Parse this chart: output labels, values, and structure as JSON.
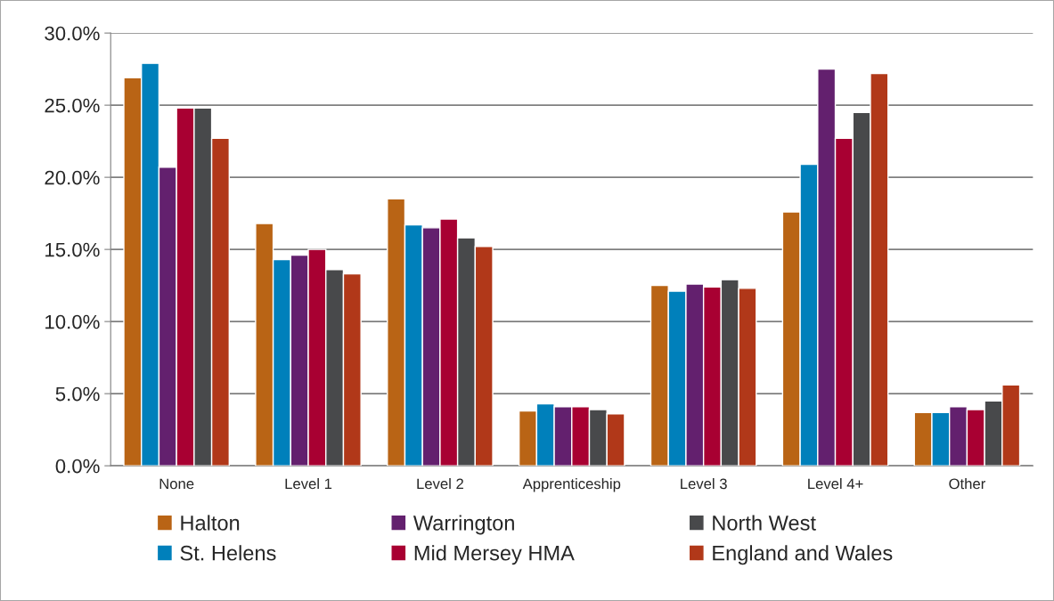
{
  "chart_data": {
    "type": "bar",
    "categories": [
      "None",
      "Level 1",
      "Level 2",
      "Apprenticeship",
      "Level 3",
      "Level 4+",
      "Other"
    ],
    "series": [
      {
        "name": "Halton",
        "color": "#b96415",
        "values": [
          26.9,
          16.8,
          18.5,
          3.8,
          12.5,
          17.6,
          3.7
        ]
      },
      {
        "name": "St. Helens",
        "color": "#0080bb",
        "values": [
          27.9,
          14.3,
          16.7,
          4.3,
          12.1,
          20.9,
          3.7
        ]
      },
      {
        "name": "Warrington",
        "color": "#63206e",
        "values": [
          20.7,
          14.6,
          16.5,
          4.1,
          12.6,
          27.5,
          4.1
        ]
      },
      {
        "name": "Mid Mersey HMA",
        "color": "#a80032",
        "values": [
          24.8,
          15.0,
          17.1,
          4.1,
          12.4,
          22.7,
          3.9
        ]
      },
      {
        "name": "North West",
        "color": "#48494b",
        "values": [
          24.8,
          13.6,
          15.8,
          3.9,
          12.9,
          24.5,
          4.5
        ]
      },
      {
        "name": "England and Wales",
        "color": "#b13819",
        "values": [
          22.7,
          13.3,
          15.2,
          3.6,
          12.3,
          27.2,
          5.6
        ]
      }
    ],
    "ylim": [
      0,
      30
    ],
    "yticks": [
      {
        "value": 0,
        "label": "0.0%"
      },
      {
        "value": 5,
        "label": "5.0%"
      },
      {
        "value": 10,
        "label": "10.0%"
      },
      {
        "value": 15,
        "label": "15.0%"
      },
      {
        "value": 20,
        "label": "20.0%"
      },
      {
        "value": 25,
        "label": "25.0%"
      },
      {
        "value": 30,
        "label": "30.0%"
      }
    ],
    "grid": "y",
    "legend": "bottom"
  }
}
